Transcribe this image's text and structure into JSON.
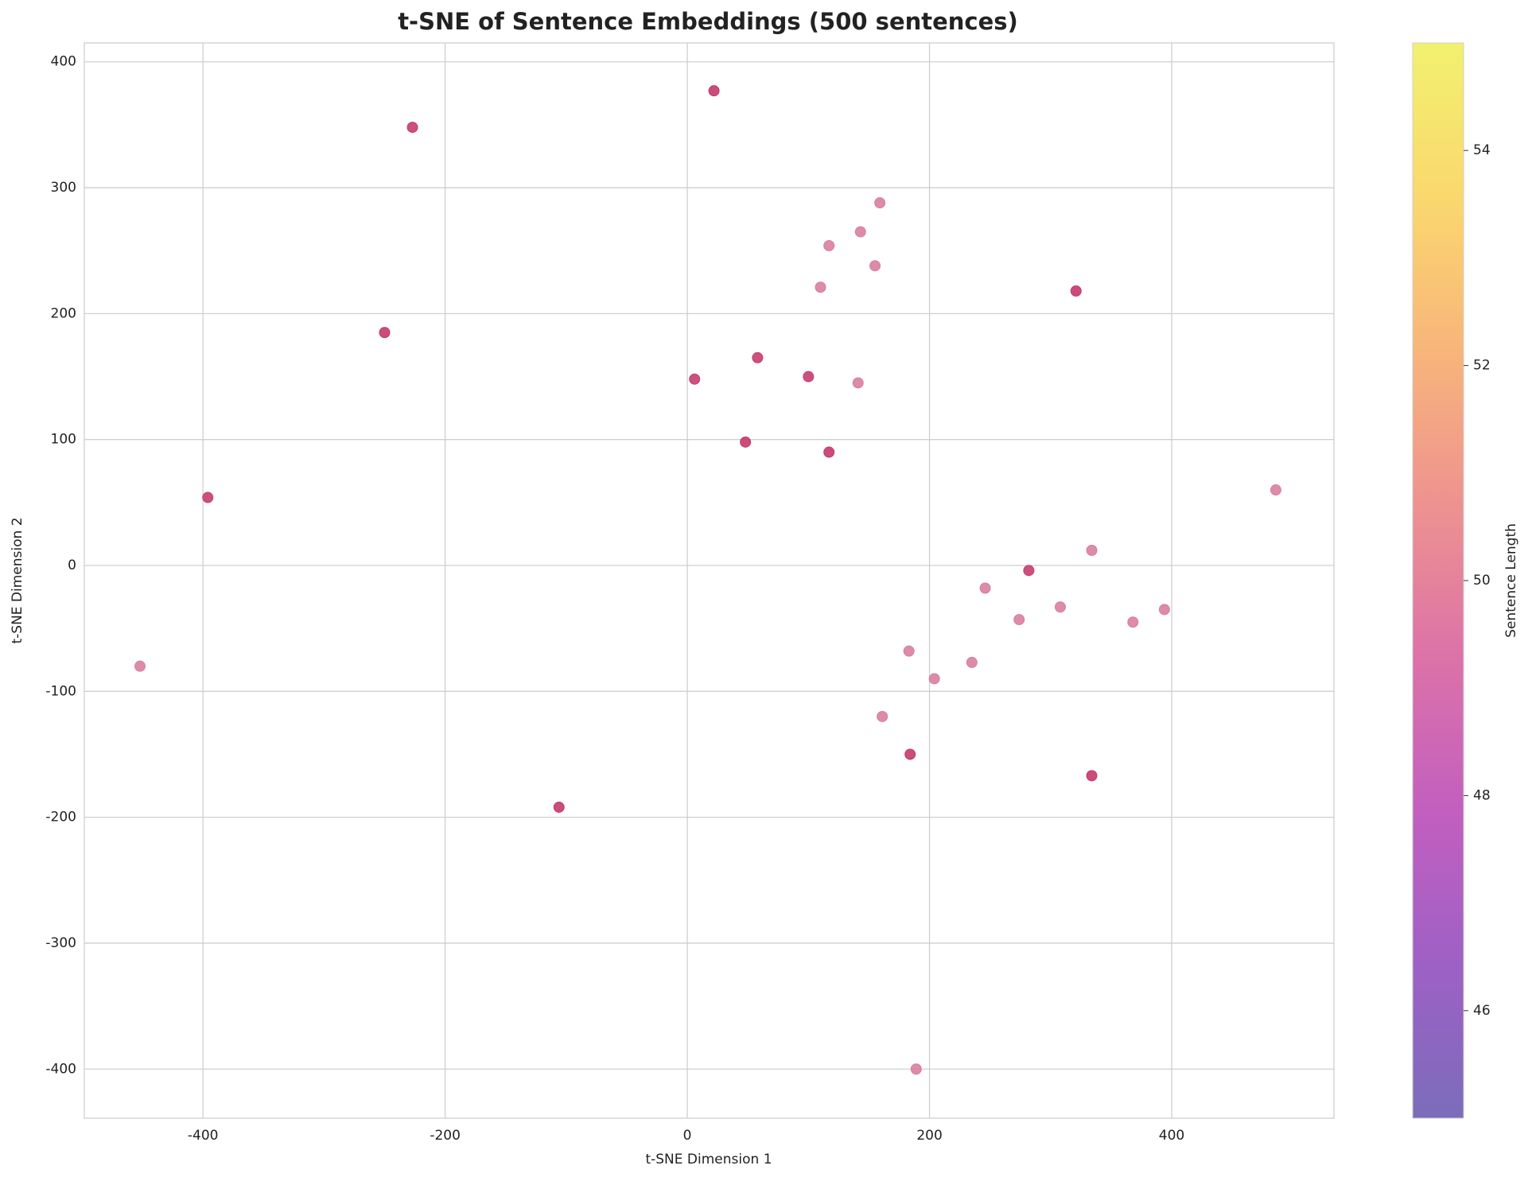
{
  "chart_data": {
    "type": "scatter",
    "title": "t-SNE of Sentence Embeddings (500 sentences)",
    "x_label": "t-SNE Dimension 1",
    "y_label": "t-SNE Dimension 2",
    "x": [
      22,
      -227,
      -250,
      -396,
      -452,
      -106,
      6,
      58,
      48,
      100,
      117,
      141,
      110,
      117,
      143,
      159,
      155,
      321,
      486,
      334,
      282,
      246,
      274,
      308,
      368,
      394,
      183,
      204,
      235,
      161,
      184,
      334,
      189
    ],
    "values": [
      377,
      348,
      185,
      54,
      -80,
      -192,
      148,
      165,
      98,
      150,
      90,
      145,
      221,
      254,
      265,
      288,
      238,
      218,
      60,
      12,
      -4,
      -18,
      -43,
      -33,
      -45,
      -35,
      -68,
      -90,
      -77,
      -120,
      -150,
      -167,
      -400
    ],
    "colors": [
      "#c4386c",
      "#c63d6f",
      "#c4386c",
      "#c63d6f",
      "#d87e9f",
      "#c4386c",
      "#c63d6f",
      "#c63d6f",
      "#c4386c",
      "#c63d6f",
      "#c4386c",
      "#d87e9f",
      "#d87e9f",
      "#d87e9f",
      "#d87e9f",
      "#d87e9f",
      "#d87e9f",
      "#c4386c",
      "#d87e9f",
      "#d87e9f",
      "#c63d6f",
      "#d87e9f",
      "#d87e9f",
      "#d87e9f",
      "#d87e9f",
      "#d87e9f",
      "#d87e9f",
      "#d87e9f",
      "#d87e9f",
      "#d87e9f",
      "#c4386c",
      "#c4386c",
      "#d87e9f"
    ],
    "xlim": [
      -498,
      534
    ],
    "ylim": [
      -439,
      415
    ],
    "xticks": [
      -400,
      -200,
      0,
      200,
      400
    ],
    "yticks": [
      -400,
      -300,
      -200,
      -100,
      0,
      100,
      200,
      300,
      400
    ],
    "grid": true,
    "colorbar": {
      "label": "Sentence Length",
      "lim": [
        45,
        55
      ],
      "ticks": [
        46,
        48,
        50,
        52,
        54
      ],
      "colors": [
        "#7b6dba",
        "#9e60c6",
        "#c25fbf",
        "#dc72a8",
        "#ee9290",
        "#f8b57a",
        "#fad86e",
        "#f2f16f"
      ]
    }
  }
}
